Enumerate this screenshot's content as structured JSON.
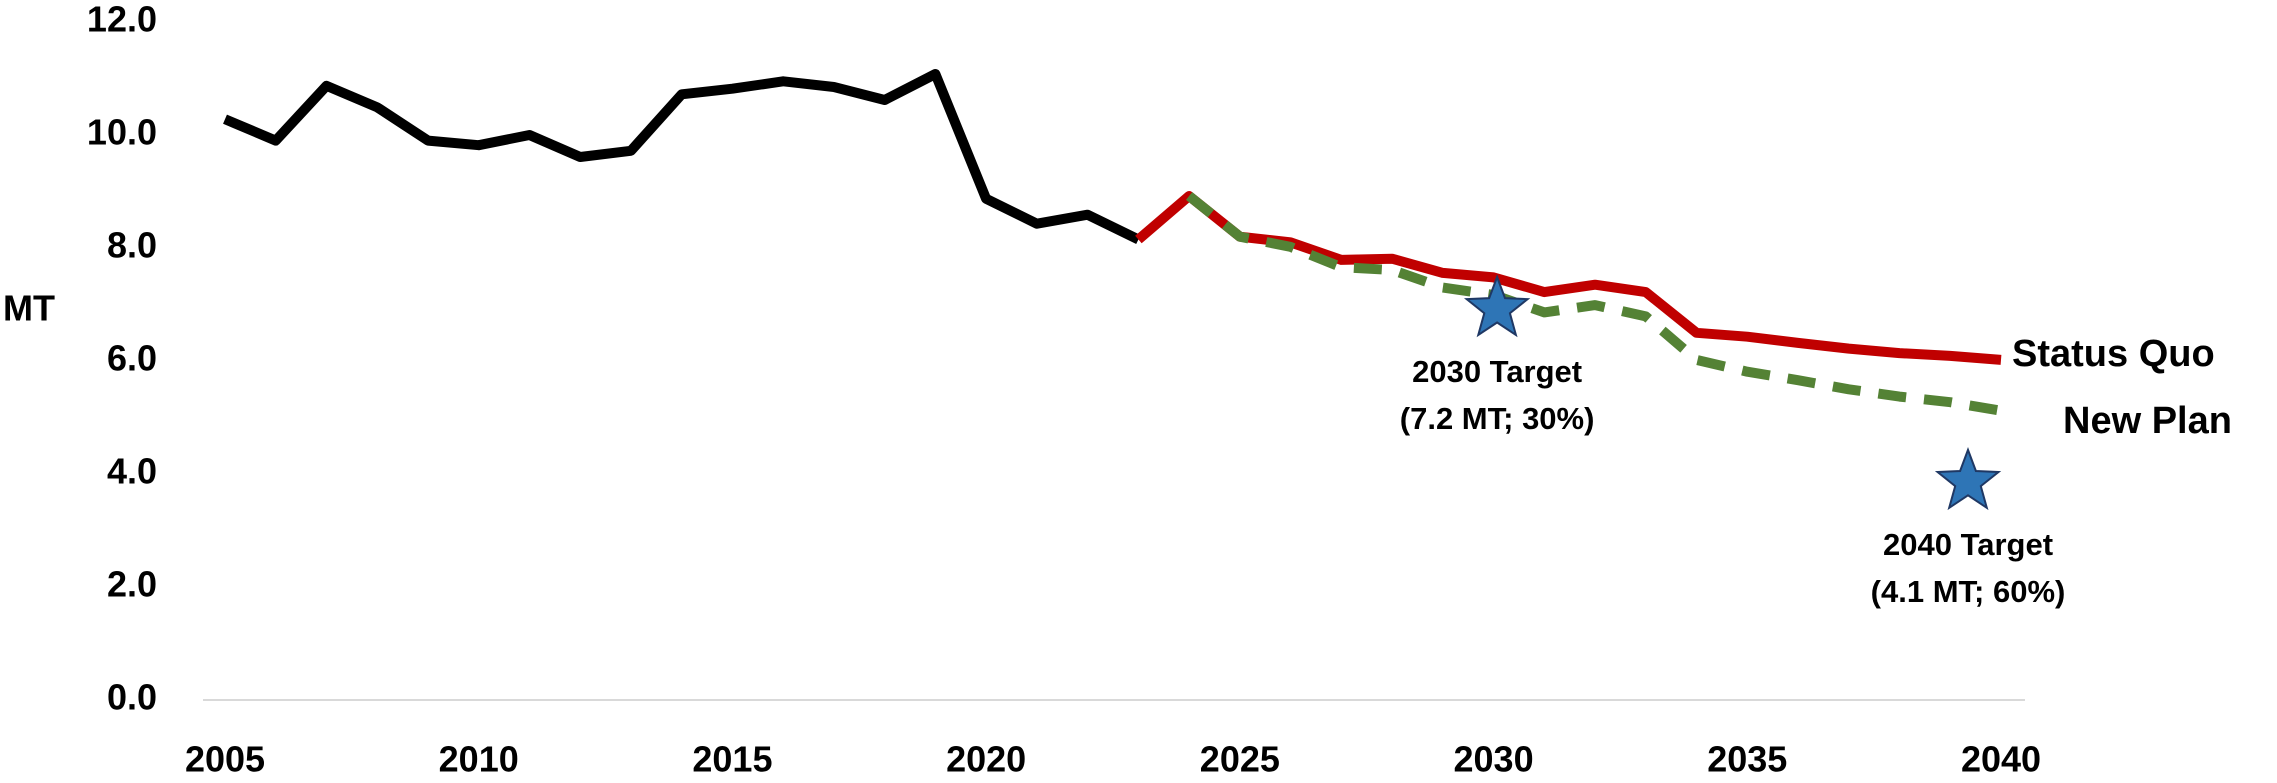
{
  "chart_data": {
    "type": "line",
    "y_label": "MT",
    "x": [
      2005,
      2006,
      2007,
      2008,
      2009,
      2010,
      2011,
      2012,
      2013,
      2014,
      2015,
      2016,
      2017,
      2018,
      2019,
      2020,
      2021,
      2022,
      2023,
      2024,
      2025,
      2026,
      2027,
      2028,
      2029,
      2030,
      2031,
      2032,
      2033,
      2034,
      2035,
      2036,
      2037,
      2038,
      2039,
      2040
    ],
    "series": [
      {
        "color": "#000000",
        "dashed": false,
        "values": [
          10.28,
          9.9,
          10.87,
          10.49,
          9.9,
          9.82,
          10.0,
          9.61,
          9.72,
          10.72,
          10.82,
          10.95,
          10.85,
          10.62,
          11.08,
          8.87,
          8.43,
          8.59,
          8.15,
          null,
          null,
          null,
          null,
          null,
          null,
          null,
          null,
          null,
          null,
          null,
          null,
          null,
          null,
          null,
          null,
          null
        ]
      },
      {
        "name": "Status Quo",
        "color": "#c00000",
        "dashed": false,
        "values": [
          null,
          null,
          null,
          null,
          null,
          null,
          null,
          null,
          null,
          null,
          null,
          null,
          null,
          null,
          null,
          null,
          null,
          null,
          8.15,
          8.92,
          8.2,
          8.1,
          7.79,
          7.81,
          7.56,
          7.48,
          7.22,
          7.35,
          7.22,
          6.5,
          6.43,
          6.32,
          6.22,
          6.14,
          6.09,
          6.02
        ]
      },
      {
        "name": "New Plan",
        "color": "#548235",
        "dashed": true,
        "values": [
          null,
          null,
          null,
          null,
          null,
          null,
          null,
          null,
          null,
          null,
          null,
          null,
          null,
          null,
          null,
          null,
          null,
          null,
          null,
          8.92,
          8.2,
          8.02,
          7.66,
          7.61,
          7.3,
          7.17,
          6.86,
          6.99,
          6.79,
          6.02,
          5.81,
          5.66,
          5.5,
          5.37,
          5.27,
          5.12
        ]
      }
    ],
    "targets": [
      {
        "x": 2030.07,
        "y": 6.92,
        "color": "#2e75b6",
        "label": [
          "2030 Target",
          "(7.2 MT; 30%)"
        ]
      },
      {
        "x": 2039.35,
        "y": 3.86,
        "color": "#2e75b6",
        "label": [
          "2040 Target",
          "(4.1 MT; 60%)"
        ]
      }
    ],
    "xlim": [
      2005,
      2040
    ],
    "xticks": [
      2005,
      2010,
      2015,
      2020,
      2025,
      2030,
      2035,
      2040
    ],
    "ylim": [
      0,
      12
    ],
    "yticks": [
      {
        "value": 0,
        "label": "0.0"
      },
      {
        "value": 2,
        "label": "2.0"
      },
      {
        "value": 4,
        "label": "4.0"
      },
      {
        "value": 6,
        "label": "6.0"
      },
      {
        "value": 8,
        "label": "8.0"
      },
      {
        "value": 10,
        "label": "10.0"
      },
      {
        "value": 12,
        "label": "12.0"
      }
    ]
  }
}
